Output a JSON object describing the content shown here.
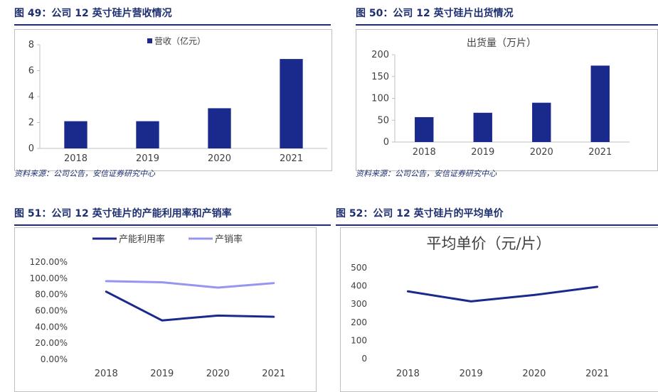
{
  "colors": {
    "title": "#1d2f6f",
    "bar": "#1a2a8c",
    "line1": "#1a2a8c",
    "line2": "#9496f0",
    "axis": "#bfbfbf"
  },
  "fig49": {
    "title": "图 49：公司 12 英寸硅片营收情况",
    "source": "资料来源：公司公告，安信证券研究中心"
  },
  "fig50": {
    "title": "图 50：公司 12 英寸硅片出货情况",
    "source": "资料来源：公司公告，安信证券研究中心"
  },
  "fig51": {
    "title": "图 51：公司 12 英寸硅片的产能利用率和产销率"
  },
  "fig52": {
    "title": "图 52：公司 12 英寸硅片的平均单价"
  },
  "chart_data": [
    {
      "type": "bar",
      "title": "",
      "categories": [
        "2018",
        "2019",
        "2020",
        "2021"
      ],
      "series": [
        {
          "name": "营收（亿元）",
          "values": [
            2.1,
            2.1,
            3.1,
            6.9
          ]
        }
      ],
      "ylim": [
        0,
        8
      ],
      "yticks": [
        "0",
        "2",
        "4",
        "6",
        "8"
      ],
      "legend": "top-center",
      "grid": false
    },
    {
      "type": "bar",
      "title": "出货量（万片）",
      "categories": [
        "2018",
        "2019",
        "2020",
        "2021"
      ],
      "series": [
        {
          "name": "出货量（万片）",
          "values": [
            57,
            67,
            90,
            175
          ]
        }
      ],
      "ylim": [
        0,
        200
      ],
      "yticks": [
        "0",
        "50",
        "100",
        "150",
        "200"
      ],
      "grid": false
    },
    {
      "type": "line",
      "title": "",
      "categories": [
        "2018",
        "2019",
        "2020",
        "2021"
      ],
      "series": [
        {
          "name": "产能利用率",
          "values": [
            83.5,
            48.0,
            54.0,
            52.5
          ]
        },
        {
          "name": "产销率",
          "values": [
            96.5,
            95.0,
            88.5,
            94.0
          ]
        }
      ],
      "ylim": [
        0,
        120
      ],
      "yticks": [
        "0.00%",
        "20.00%",
        "40.00%",
        "60.00%",
        "80.00%",
        "100.00%",
        "120.00%"
      ],
      "legend": "top-center",
      "grid": false
    },
    {
      "type": "line",
      "title": "平均单价（元/片）",
      "categories": [
        "2018",
        "2019",
        "2020",
        "2021"
      ],
      "series": [
        {
          "name": "平均单价（元/片）",
          "values": [
            370,
            315,
            350,
            395
          ]
        }
      ],
      "ylim": [
        0,
        500
      ],
      "yticks": [
        "0",
        "100",
        "200",
        "300",
        "400",
        "500"
      ],
      "grid": false
    }
  ]
}
